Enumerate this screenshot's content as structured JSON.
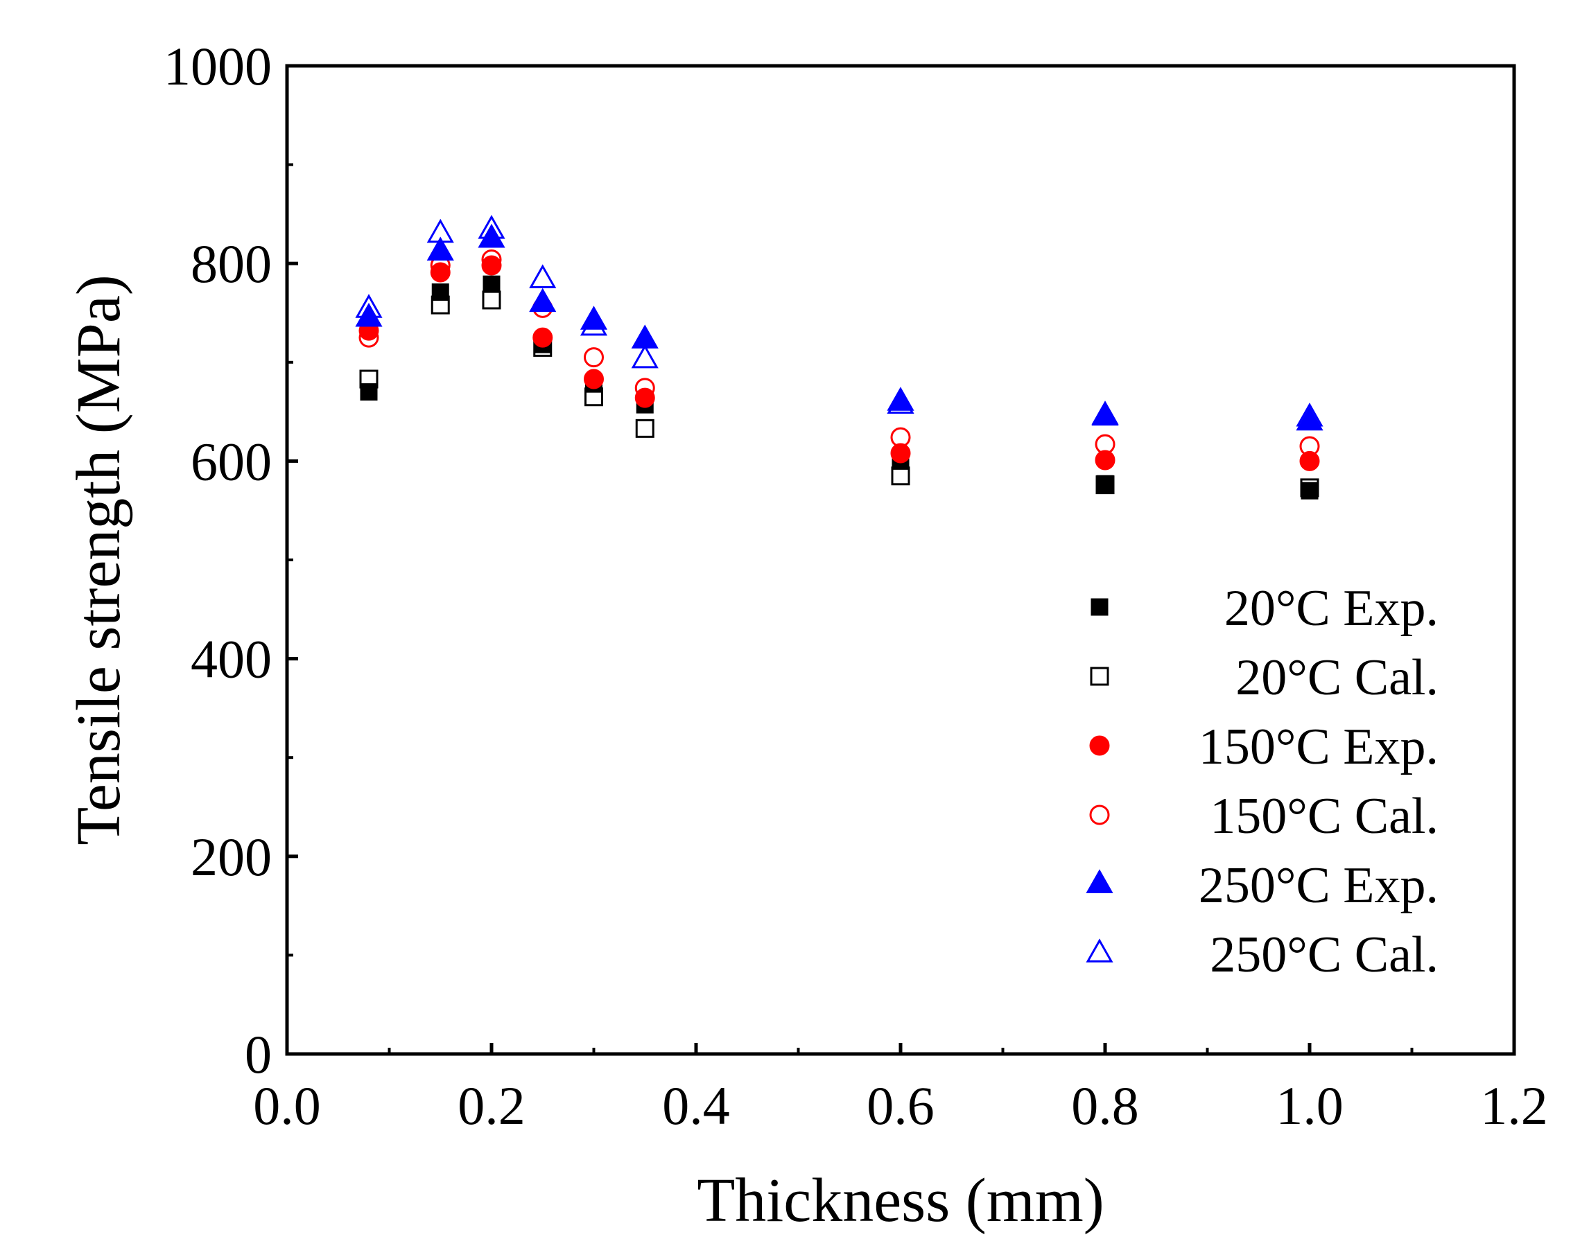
{
  "chart_data": {
    "type": "scatter",
    "xlabel": "Thickness (mm)",
    "ylabel": "Tensile strength (MPa)",
    "xlim": [
      0.0,
      1.2
    ],
    "ylim": [
      0,
      1000
    ],
    "x_ticks": [
      0.0,
      0.2,
      0.4,
      0.6,
      0.8,
      1.0,
      1.2
    ],
    "x_tick_labels": [
      "0.0",
      "0.2",
      "0.4",
      "0.6",
      "0.8",
      "1.0",
      "1.2"
    ],
    "y_ticks": [
      0,
      200,
      400,
      600,
      800,
      1000
    ],
    "y_tick_labels": [
      "0",
      "200",
      "400",
      "600",
      "800",
      "1000"
    ],
    "grid": false,
    "legend_position": "bottom-right",
    "series": [
      {
        "name": "20°C Exp.",
        "marker": "square",
        "filled": true,
        "color": "#000000",
        "x": [
          0.08,
          0.15,
          0.2,
          0.25,
          0.3,
          0.35,
          0.6,
          0.8,
          1.0
        ],
        "y": [
          670,
          771,
          779,
          718,
          678,
          657,
          600,
          577,
          570
        ]
      },
      {
        "name": "20°C Cal.",
        "marker": "square",
        "filled": false,
        "color": "#000000",
        "x": [
          0.08,
          0.15,
          0.2,
          0.25,
          0.3,
          0.35,
          0.6,
          0.8,
          1.0
        ],
        "y": [
          683,
          758,
          763,
          715,
          665,
          633,
          585,
          576,
          573
        ]
      },
      {
        "name": "150°C Exp.",
        "marker": "circle",
        "filled": true,
        "color": "#ff0000",
        "x": [
          0.08,
          0.15,
          0.2,
          0.25,
          0.3,
          0.35,
          0.6,
          0.8,
          1.0
        ],
        "y": [
          732,
          791,
          798,
          725,
          683,
          664,
          608,
          601,
          600
        ]
      },
      {
        "name": "150°C Cal.",
        "marker": "circle",
        "filled": false,
        "color": "#ff0000",
        "x": [
          0.08,
          0.15,
          0.2,
          0.25,
          0.3,
          0.35,
          0.6,
          0.8,
          1.0
        ],
        "y": [
          725,
          798,
          804,
          755,
          705,
          674,
          624,
          617,
          615
        ]
      },
      {
        "name": "250°C Exp.",
        "marker": "triangle",
        "filled": true,
        "color": "#0000ff",
        "x": [
          0.08,
          0.15,
          0.2,
          0.25,
          0.3,
          0.35,
          0.6,
          0.8,
          1.0
        ],
        "y": [
          745,
          812,
          825,
          760,
          742,
          723,
          660,
          645,
          640
        ]
      },
      {
        "name": "250°C Cal.",
        "marker": "triangle",
        "filled": false,
        "color": "#0000ff",
        "x": [
          0.08,
          0.15,
          0.2,
          0.25,
          0.3,
          0.35,
          0.6,
          0.8,
          1.0
        ],
        "y": [
          754,
          830,
          834,
          784,
          736,
          703,
          657,
          646,
          644
        ]
      }
    ]
  }
}
